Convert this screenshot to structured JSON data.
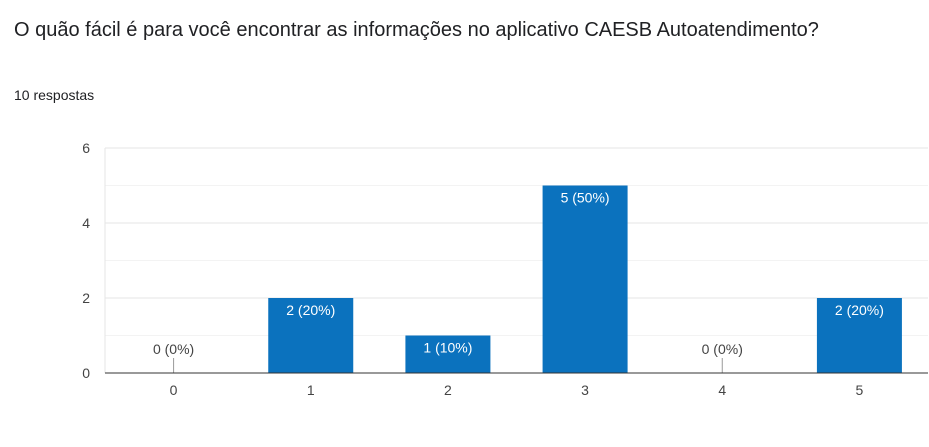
{
  "question": {
    "title": "O quão fácil é para você encontrar as informações no aplicativo CAESB Autoatendimento?",
    "responses": "10 respostas"
  },
  "chart_data": {
    "type": "bar",
    "categories": [
      "0",
      "1",
      "2",
      "3",
      "4",
      "5"
    ],
    "values": [
      0,
      2,
      1,
      5,
      0,
      2
    ],
    "labels": [
      "0 (0%)",
      "2 (20%)",
      "1 (10%)",
      "5 (50%)",
      "0 (0%)",
      "2 (20%)"
    ],
    "ylim": [
      0,
      6
    ],
    "yticks": [
      "0",
      "2",
      "4",
      "6"
    ],
    "grid": true,
    "bar_color": "#0b72be"
  }
}
